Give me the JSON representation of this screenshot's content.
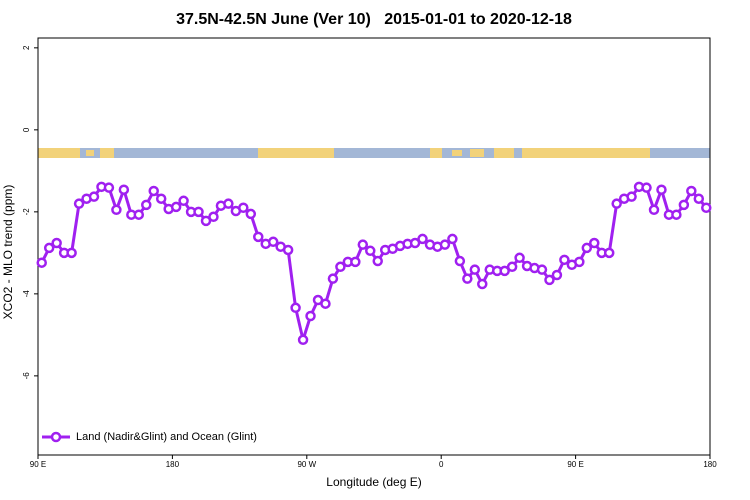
{
  "chart_data": {
    "type": "line",
    "title": "37.5N-42.5N June (Ver 10)   2015-01-01 to 2020-12-18",
    "x_label": "Longitude (deg E)",
    "y_label": "XCO2 - MLO trend (ppm)",
    "xlim": [
      90,
      540
    ],
    "ylim": [
      -7.93,
      2.24
    ],
    "xticks": [
      {
        "value": 90,
        "label": "90 E"
      },
      180,
      {
        "value": 270,
        "label": "90 W"
      },
      {
        "value": 360,
        "label": "0"
      },
      {
        "value": 450,
        "label": "90 E"
      },
      {
        "value": 540,
        "label": "180"
      }
    ],
    "yticks": [
      2,
      0,
      -2,
      -4,
      -6
    ],
    "legend_position": "bottom-left",
    "x": [
      92.5,
      97.5,
      102.5,
      107.5,
      112.5,
      117.5,
      122.5,
      127.5,
      132.5,
      137.5,
      142.5,
      147.5,
      152.5,
      157.5,
      162.5,
      167.5,
      172.5,
      177.5,
      182.5,
      187.5,
      192.5,
      197.5,
      202.5,
      207.5,
      212.5,
      217.5,
      222.5,
      227.5,
      232.5,
      237.5,
      242.5,
      247.5,
      252.5,
      257.5,
      262.5,
      267.5,
      272.5,
      277.5,
      282.5,
      287.5,
      292.5,
      297.5,
      302.5,
      307.5,
      312.5,
      317.5,
      322.5,
      327.5,
      332.5,
      337.5,
      342.5,
      347.5,
      352.5,
      357.5,
      362.5,
      367.5,
      372.5,
      377.5,
      382.5,
      387.5,
      392.5,
      397.5,
      402.5,
      407.5,
      412.5,
      417.5,
      422.5,
      427.5,
      432.5,
      437.5,
      442.5,
      447.5,
      452.5,
      457.5,
      462.5,
      467.5,
      472.5,
      477.5,
      482.5,
      487.5,
      492.5,
      497.5,
      502.5,
      507.5,
      512.5,
      517.5,
      522.5,
      527.5,
      532.5,
      537.5
    ],
    "series": [
      {
        "name": "Land (Nadir&Glint) and Ocean (Glint)",
        "color": "#a020f0",
        "values": [
          -3.24,
          -2.88,
          -2.76,
          -3.0,
          -3.0,
          -1.8,
          -1.68,
          -1.63,
          -1.39,
          -1.41,
          -1.95,
          -1.46,
          -2.07,
          -2.07,
          -1.83,
          -1.49,
          -1.68,
          -1.93,
          -1.88,
          -1.73,
          -2.0,
          -2.0,
          -2.22,
          -2.12,
          -1.85,
          -1.8,
          -1.98,
          -1.9,
          -2.05,
          -2.61,
          -2.78,
          -2.73,
          -2.85,
          -2.93,
          -4.34,
          -5.12,
          -4.54,
          -4.15,
          -4.24,
          -3.63,
          -3.34,
          -3.22,
          -3.22,
          -2.8,
          -2.95,
          -3.2,
          -2.93,
          -2.9,
          -2.83,
          -2.78,
          -2.76,
          -2.66,
          -2.8,
          -2.85,
          -2.8,
          -2.66,
          -3.2,
          -3.63,
          -3.41,
          -3.76,
          -3.41,
          -3.44,
          -3.44,
          -3.34,
          -3.12,
          -3.32,
          -3.37,
          -3.41,
          -3.66,
          -3.54,
          -3.17,
          -3.29,
          -3.22,
          -2.88,
          -2.76,
          -3.0,
          -3.0,
          -1.8,
          -1.68,
          -1.63,
          -1.39,
          -1.41,
          -1.95,
          -1.46,
          -2.07,
          -2.07,
          -1.83,
          -1.49,
          -1.68,
          -1.9
        ]
      }
    ]
  }
}
